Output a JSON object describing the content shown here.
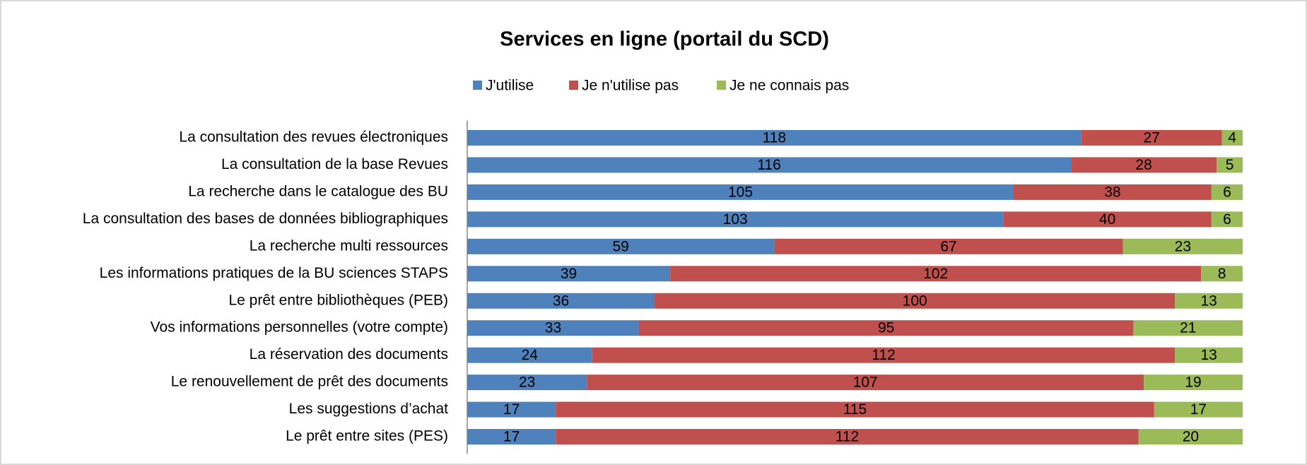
{
  "chart_data": {
    "type": "stacked-bar-horizontal",
    "title": "Services en ligne (portail du SCD)",
    "categories": [
      "La consultation des revues électroniques",
      "La consultation de la base Revues",
      "La recherche dans le catalogue des BU",
      "La consultation des bases de données bibliographiques",
      "La recherche multi ressources",
      "Les informations pratiques de la BU sciences STAPS",
      "Le prêt entre bibliothèques (PEB)",
      "Vos informations personnelles (votre compte)",
      "La réservation des documents",
      "Le renouvellement de prêt des documents",
      "Les suggestions d’achat",
      "Le prêt entre sites (PES)"
    ],
    "series": [
      {
        "name": "J'utilise",
        "color": "#4f81bd",
        "values": [
          118,
          116,
          105,
          103,
          59,
          39,
          36,
          33,
          24,
          23,
          17,
          17
        ]
      },
      {
        "name": "Je n'utilise pas",
        "color": "#c0504d",
        "values": [
          27,
          28,
          38,
          40,
          67,
          102,
          100,
          95,
          112,
          107,
          115,
          112
        ]
      },
      {
        "name": "Je ne connais pas",
        "color": "#9bbb59",
        "values": [
          4,
          5,
          6,
          6,
          23,
          8,
          13,
          21,
          13,
          19,
          17,
          20
        ]
      }
    ],
    "xlim": [
      0,
      149
    ],
    "legend": "top"
  }
}
